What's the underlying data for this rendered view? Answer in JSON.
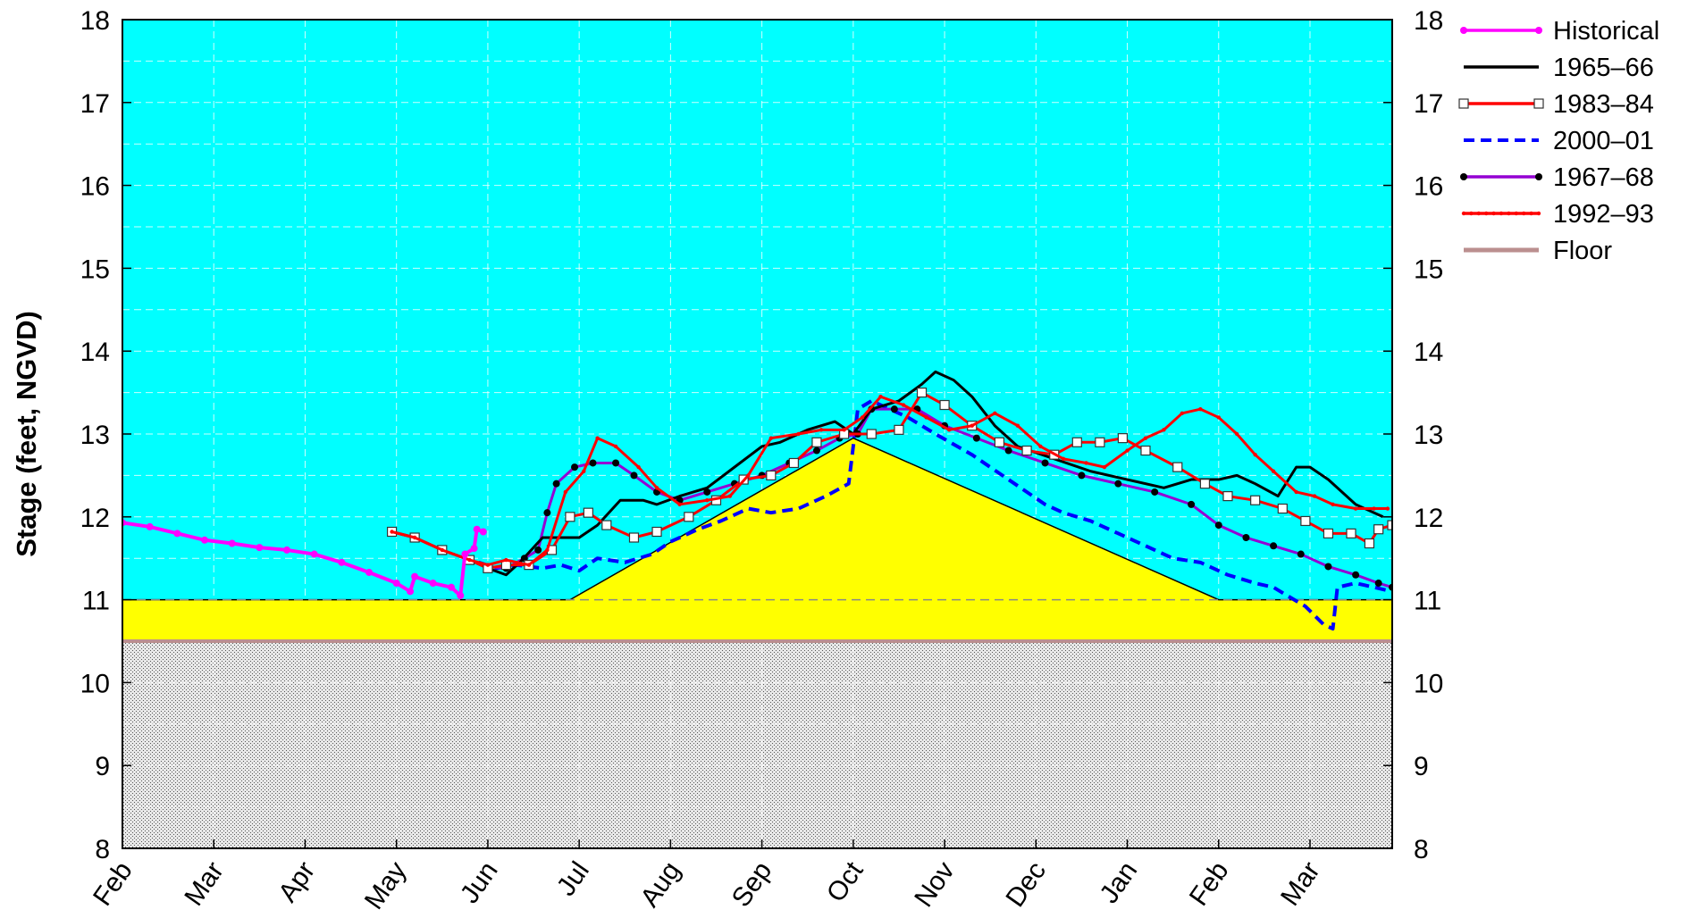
{
  "chart_data": {
    "type": "line",
    "ylabel": "Stage (feet, NGVD)",
    "ylim": [
      8,
      18
    ],
    "yticks": [
      "8",
      "9",
      "10",
      "11",
      "12",
      "13",
      "14",
      "15",
      "16",
      "17",
      "18"
    ],
    "x_months": [
      "Feb",
      "Mar",
      "Apr",
      "May",
      "Jun",
      "Jul",
      "Aug",
      "Sep",
      "Oct",
      "Nov",
      "Dec",
      "Jan",
      "Feb",
      "Mar"
    ],
    "xlim_month_index": [
      0,
      13.9
    ],
    "grid": "dashed",
    "legend_position": "right",
    "colors": {
      "background": "#00ffff",
      "operating_zone": "#ffff00",
      "below_floor": "#c8c8c8",
      "floor": "#bb8f8f"
    },
    "zones": {
      "floor_stage": 10.5,
      "zone_upper_boundary": [
        [
          0,
          11.0
        ],
        [
          4.9,
          11.0
        ],
        [
          8.0,
          12.95
        ],
        [
          12.0,
          11.0
        ],
        [
          13.9,
          11.0
        ]
      ]
    },
    "series": [
      {
        "name": "Historical",
        "color": "#ff00ff",
        "marker": "dot",
        "points": [
          [
            0,
            11.93
          ],
          [
            0.3,
            11.88
          ],
          [
            0.6,
            11.8
          ],
          [
            0.9,
            11.72
          ],
          [
            1.2,
            11.68
          ],
          [
            1.5,
            11.63
          ],
          [
            1.8,
            11.6
          ],
          [
            2.1,
            11.55
          ],
          [
            2.4,
            11.45
          ],
          [
            2.7,
            11.33
          ],
          [
            3.0,
            11.2
          ],
          [
            3.15,
            11.1
          ],
          [
            3.2,
            11.28
          ],
          [
            3.4,
            11.2
          ],
          [
            3.6,
            11.15
          ],
          [
            3.7,
            11.05
          ],
          [
            3.75,
            11.55
          ],
          [
            3.85,
            11.62
          ],
          [
            3.88,
            11.85
          ],
          [
            3.95,
            11.82
          ]
        ]
      },
      {
        "name": "1965–66",
        "color": "#000000",
        "marker": "none",
        "points": [
          [
            2.95,
            11.82
          ],
          [
            3.2,
            11.75
          ],
          [
            3.5,
            11.6
          ],
          [
            3.8,
            11.48
          ],
          [
            4.0,
            11.38
          ],
          [
            4.2,
            11.3
          ],
          [
            4.35,
            11.45
          ],
          [
            4.6,
            11.75
          ],
          [
            4.8,
            11.75
          ],
          [
            5.0,
            11.75
          ],
          [
            5.2,
            11.9
          ],
          [
            5.45,
            12.2
          ],
          [
            5.7,
            12.2
          ],
          [
            5.85,
            12.15
          ],
          [
            6.1,
            12.25
          ],
          [
            6.4,
            12.35
          ],
          [
            6.7,
            12.6
          ],
          [
            7.0,
            12.85
          ],
          [
            7.2,
            12.9
          ],
          [
            7.5,
            13.05
          ],
          [
            7.8,
            13.15
          ],
          [
            8.0,
            13.0
          ],
          [
            8.2,
            13.3
          ],
          [
            8.5,
            13.4
          ],
          [
            8.75,
            13.6
          ],
          [
            8.9,
            13.75
          ],
          [
            9.1,
            13.65
          ],
          [
            9.3,
            13.45
          ],
          [
            9.55,
            13.1
          ],
          [
            9.8,
            12.85
          ],
          [
            10.2,
            12.7
          ],
          [
            10.6,
            12.55
          ],
          [
            11.0,
            12.45
          ],
          [
            11.4,
            12.35
          ],
          [
            11.7,
            12.45
          ],
          [
            12.0,
            12.45
          ],
          [
            12.2,
            12.5
          ],
          [
            12.4,
            12.4
          ],
          [
            12.65,
            12.25
          ],
          [
            12.85,
            12.6
          ],
          [
            13.0,
            12.6
          ],
          [
            13.2,
            12.45
          ],
          [
            13.5,
            12.15
          ],
          [
            13.8,
            12.0
          ]
        ]
      },
      {
        "name": "1983–84",
        "color": "#ff0000",
        "marker": "open-square",
        "points": [
          [
            2.95,
            11.82
          ],
          [
            3.2,
            11.75
          ],
          [
            3.5,
            11.6
          ],
          [
            3.8,
            11.48
          ],
          [
            4.0,
            11.38
          ],
          [
            4.2,
            11.42
          ],
          [
            4.45,
            11.42
          ],
          [
            4.7,
            11.6
          ],
          [
            4.9,
            12.0
          ],
          [
            5.1,
            12.05
          ],
          [
            5.3,
            11.9
          ],
          [
            5.6,
            11.75
          ],
          [
            5.85,
            11.82
          ],
          [
            6.2,
            12.0
          ],
          [
            6.5,
            12.2
          ],
          [
            6.8,
            12.45
          ],
          [
            7.1,
            12.5
          ],
          [
            7.35,
            12.65
          ],
          [
            7.6,
            12.9
          ],
          [
            7.9,
            13.0
          ],
          [
            8.2,
            13.0
          ],
          [
            8.5,
            13.05
          ],
          [
            8.75,
            13.5
          ],
          [
            9.0,
            13.35
          ],
          [
            9.3,
            13.1
          ],
          [
            9.6,
            12.9
          ],
          [
            9.9,
            12.8
          ],
          [
            10.2,
            12.75
          ],
          [
            10.45,
            12.9
          ],
          [
            10.7,
            12.9
          ],
          [
            10.95,
            12.95
          ],
          [
            11.2,
            12.8
          ],
          [
            11.55,
            12.6
          ],
          [
            11.85,
            12.4
          ],
          [
            12.1,
            12.25
          ],
          [
            12.4,
            12.2
          ],
          [
            12.7,
            12.1
          ],
          [
            12.95,
            11.95
          ],
          [
            13.2,
            11.8
          ],
          [
            13.45,
            11.8
          ],
          [
            13.65,
            11.68
          ],
          [
            13.75,
            11.85
          ],
          [
            13.9,
            11.9
          ]
        ]
      },
      {
        "name": "2000–01",
        "color": "#0000ff",
        "marker": "dash",
        "points": [
          [
            3.9,
            11.45
          ],
          [
            4.1,
            11.38
          ],
          [
            4.3,
            11.42
          ],
          [
            4.6,
            11.38
          ],
          [
            4.8,
            11.42
          ],
          [
            5.0,
            11.35
          ],
          [
            5.2,
            11.5
          ],
          [
            5.5,
            11.45
          ],
          [
            5.8,
            11.55
          ],
          [
            6.0,
            11.7
          ],
          [
            6.3,
            11.85
          ],
          [
            6.55,
            11.95
          ],
          [
            6.85,
            12.1
          ],
          [
            7.1,
            12.05
          ],
          [
            7.4,
            12.1
          ],
          [
            7.7,
            12.25
          ],
          [
            7.95,
            12.4
          ],
          [
            8.05,
            13.3
          ],
          [
            8.2,
            13.4
          ],
          [
            8.6,
            13.2
          ],
          [
            8.9,
            13.0
          ],
          [
            9.3,
            12.75
          ],
          [
            9.7,
            12.45
          ],
          [
            10.1,
            12.15
          ],
          [
            10.3,
            12.05
          ],
          [
            10.6,
            11.95
          ],
          [
            10.9,
            11.8
          ],
          [
            11.2,
            11.65
          ],
          [
            11.5,
            11.5
          ],
          [
            11.8,
            11.45
          ],
          [
            12.1,
            11.3
          ],
          [
            12.4,
            11.2
          ],
          [
            12.6,
            11.15
          ],
          [
            12.75,
            11.05
          ],
          [
            12.95,
            10.92
          ],
          [
            13.15,
            10.7
          ],
          [
            13.25,
            10.65
          ],
          [
            13.3,
            11.15
          ],
          [
            13.5,
            11.2
          ],
          [
            13.7,
            11.15
          ],
          [
            13.9,
            11.1
          ]
        ]
      },
      {
        "name": "1967–68",
        "color": "#000000",
        "line_color": "#9400d3",
        "marker": "filled-circle",
        "points": [
          [
            2.95,
            11.82
          ],
          [
            3.2,
            11.75
          ],
          [
            3.5,
            11.6
          ],
          [
            3.8,
            11.48
          ],
          [
            4.0,
            11.4
          ],
          [
            4.2,
            11.38
          ],
          [
            4.4,
            11.5
          ],
          [
            4.55,
            11.6
          ],
          [
            4.65,
            12.05
          ],
          [
            4.75,
            12.4
          ],
          [
            4.95,
            12.6
          ],
          [
            5.15,
            12.65
          ],
          [
            5.4,
            12.65
          ],
          [
            5.6,
            12.5
          ],
          [
            5.85,
            12.3
          ],
          [
            6.1,
            12.2
          ],
          [
            6.4,
            12.3
          ],
          [
            6.7,
            12.4
          ],
          [
            7.0,
            12.5
          ],
          [
            7.3,
            12.65
          ],
          [
            7.6,
            12.8
          ],
          [
            7.85,
            12.95
          ],
          [
            8.05,
            13.0
          ],
          [
            8.2,
            13.3
          ],
          [
            8.45,
            13.3
          ],
          [
            8.7,
            13.3
          ],
          [
            9.0,
            13.1
          ],
          [
            9.35,
            12.95
          ],
          [
            9.7,
            12.8
          ],
          [
            10.1,
            12.65
          ],
          [
            10.5,
            12.5
          ],
          [
            10.9,
            12.4
          ],
          [
            11.3,
            12.3
          ],
          [
            11.7,
            12.15
          ],
          [
            12.0,
            11.9
          ],
          [
            12.3,
            11.75
          ],
          [
            12.6,
            11.65
          ],
          [
            12.9,
            11.55
          ],
          [
            13.2,
            11.4
          ],
          [
            13.5,
            11.3
          ],
          [
            13.75,
            11.2
          ],
          [
            13.9,
            11.15
          ]
        ]
      },
      {
        "name": "1992–93",
        "color": "#ff0000",
        "marker": "small-dot",
        "points": [
          [
            2.95,
            11.82
          ],
          [
            3.2,
            11.75
          ],
          [
            3.5,
            11.6
          ],
          [
            3.8,
            11.48
          ],
          [
            4.0,
            11.42
          ],
          [
            4.2,
            11.48
          ],
          [
            4.45,
            11.42
          ],
          [
            4.65,
            11.6
          ],
          [
            4.85,
            12.3
          ],
          [
            5.05,
            12.55
          ],
          [
            5.2,
            12.95
          ],
          [
            5.4,
            12.85
          ],
          [
            5.65,
            12.6
          ],
          [
            5.85,
            12.35
          ],
          [
            6.1,
            12.15
          ],
          [
            6.4,
            12.2
          ],
          [
            6.65,
            12.25
          ],
          [
            6.85,
            12.5
          ],
          [
            7.1,
            12.95
          ],
          [
            7.4,
            13.0
          ],
          [
            7.65,
            13.05
          ],
          [
            7.9,
            13.05
          ],
          [
            8.1,
            13.2
          ],
          [
            8.3,
            13.45
          ],
          [
            8.55,
            13.35
          ],
          [
            8.8,
            13.2
          ],
          [
            9.05,
            13.05
          ],
          [
            9.3,
            13.1
          ],
          [
            9.55,
            13.25
          ],
          [
            9.8,
            13.1
          ],
          [
            10.05,
            12.85
          ],
          [
            10.3,
            12.7
          ],
          [
            10.55,
            12.65
          ],
          [
            10.75,
            12.6
          ],
          [
            11.0,
            12.8
          ],
          [
            11.2,
            12.95
          ],
          [
            11.4,
            13.05
          ],
          [
            11.6,
            13.25
          ],
          [
            11.8,
            13.3
          ],
          [
            12.0,
            13.2
          ],
          [
            12.2,
            13.0
          ],
          [
            12.4,
            12.75
          ],
          [
            12.6,
            12.55
          ],
          [
            12.85,
            12.3
          ],
          [
            13.05,
            12.25
          ],
          [
            13.25,
            12.15
          ],
          [
            13.5,
            12.1
          ],
          [
            13.7,
            12.1
          ],
          [
            13.85,
            12.1
          ]
        ]
      },
      {
        "name": "Floor",
        "color": "#bb8f8f",
        "marker": "none",
        "points": [
          [
            0,
            10.5
          ],
          [
            13.9,
            10.5
          ]
        ]
      }
    ]
  }
}
